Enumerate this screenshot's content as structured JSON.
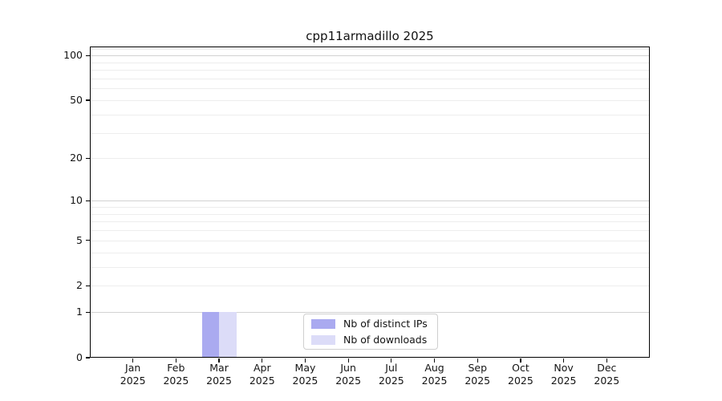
{
  "chart_data": {
    "type": "bar",
    "title": "cpp11armadillo 2025",
    "x_year": "2025",
    "categories": [
      "Jan",
      "Feb",
      "Mar",
      "Apr",
      "May",
      "Jun",
      "Jul",
      "Aug",
      "Sep",
      "Oct",
      "Nov",
      "Dec"
    ],
    "series": [
      {
        "name": "Nb of distinct IPs",
        "color": "#aaaaf0",
        "values": [
          0,
          0,
          1,
          0,
          0,
          0,
          0,
          0,
          0,
          0,
          0,
          0
        ]
      },
      {
        "name": "Nb of downloads",
        "color": "#dcdcf8",
        "values": [
          0,
          0,
          1,
          0,
          0,
          0,
          0,
          0,
          0,
          0,
          0,
          0
        ]
      }
    ],
    "yscale": "log1p",
    "ylim": [
      0,
      115
    ],
    "yticks": [
      0,
      1,
      2,
      5,
      10,
      20,
      50,
      100
    ],
    "major_gridlines": [
      1,
      10,
      100
    ],
    "minor_gridlines": [
      2,
      3,
      4,
      5,
      6,
      7,
      8,
      9,
      20,
      30,
      40,
      50,
      60,
      70,
      80,
      90,
      110
    ],
    "grid": true,
    "legend_position": "lower center"
  }
}
